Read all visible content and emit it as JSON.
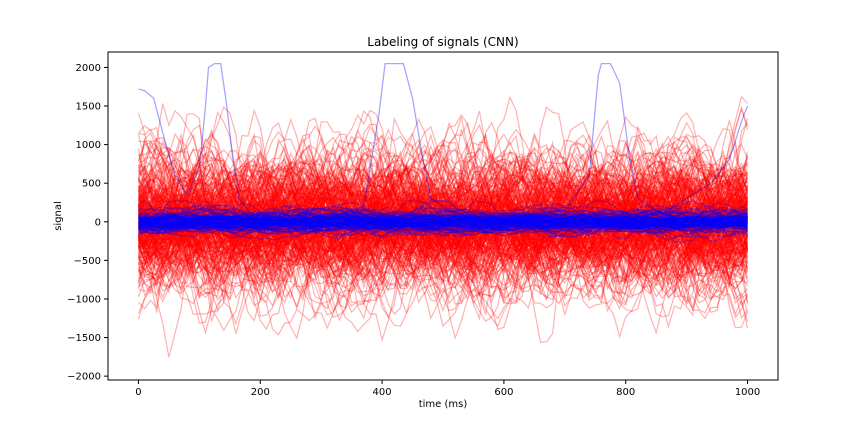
{
  "chart_data": {
    "type": "line",
    "title": "Labeling of signals (CNN)",
    "xlabel": "time (ms)",
    "ylabel": "signal",
    "xlim": [
      -50,
      1050
    ],
    "ylim": [
      -2050,
      2200
    ],
    "xticks": [
      0,
      200,
      400,
      600,
      800,
      1000
    ],
    "yticks": [
      -2000,
      -1500,
      -1000,
      -500,
      0,
      500,
      1000,
      1500,
      2000
    ],
    "grid": false,
    "legend": "none",
    "series": [
      {
        "color": "#ff0000",
        "alpha": 0.3,
        "trace_count": 300,
        "typical_amplitude": 500,
        "peak_amplitude": 1850,
        "x_range": [
          0,
          1000
        ]
      },
      {
        "color": "#0000ff",
        "alpha": 0.3,
        "trace_count": 120,
        "typical_amplitude": 90,
        "x_range": [
          0,
          1000
        ],
        "notable_trace_points": [
          [
            0,
            1720
          ],
          [
            10,
            1700
          ],
          [
            25,
            1600
          ],
          [
            45,
            1000
          ],
          [
            60,
            600
          ],
          [
            80,
            350
          ],
          [
            100,
            700
          ],
          [
            110,
            1500
          ],
          [
            115,
            2000
          ],
          [
            125,
            2050
          ],
          [
            135,
            2050
          ],
          [
            145,
            1500
          ],
          [
            155,
            800
          ],
          [
            165,
            300
          ],
          [
            185,
            100
          ],
          [
            200,
            80
          ],
          [
            240,
            0
          ],
          [
            280,
            50
          ],
          [
            330,
            100
          ],
          [
            370,
            200
          ],
          [
            395,
            1400
          ],
          [
            405,
            2050
          ],
          [
            435,
            2050
          ],
          [
            450,
            1600
          ],
          [
            465,
            900
          ],
          [
            480,
            300
          ],
          [
            520,
            100
          ],
          [
            560,
            0
          ],
          [
            600,
            50
          ],
          [
            650,
            100
          ],
          [
            700,
            150
          ],
          [
            740,
            600
          ],
          [
            755,
            1900
          ],
          [
            760,
            2050
          ],
          [
            775,
            2050
          ],
          [
            790,
            1800
          ],
          [
            805,
            900
          ],
          [
            820,
            300
          ],
          [
            860,
            100
          ],
          [
            900,
            300
          ],
          [
            940,
            500
          ],
          [
            970,
            800
          ],
          [
            990,
            1300
          ],
          [
            1000,
            1500
          ]
        ]
      }
    ]
  }
}
